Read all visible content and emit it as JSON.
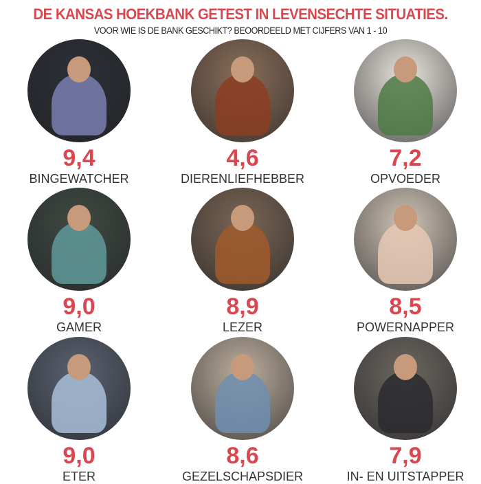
{
  "header": {
    "title": "DE KANSAS HOEKBANK GETEST IN LEVENSECHTE SITUATIES.",
    "subtitle": "VOOR WIE IS DE BANK GESCHIKT? BEOORDEELD MET CIJFERS VAN 1 - 10"
  },
  "colors": {
    "accent": "#d9474f",
    "text": "#333333"
  },
  "items": [
    {
      "score": "9,4",
      "label": "BINGEWATCHER",
      "bg": "#2c3036",
      "fg": "#7a7fb0"
    },
    {
      "score": "4,6",
      "label": "DIERENLIEFHEBBER",
      "bg": "#8a6e58",
      "fg": "#8b3d22"
    },
    {
      "score": "7,2",
      "label": "OPVOEDER",
      "bg": "#e9e4dc",
      "fg": "#4e7a45"
    },
    {
      "score": "9,0",
      "label": "GAMER",
      "bg": "#3f4a42",
      "fg": "#5f9a9a"
    },
    {
      "score": "8,9",
      "label": "LEZER",
      "bg": "#7a6654",
      "fg": "#a05a2c"
    },
    {
      "score": "8,5",
      "label": "POWERNAPPER",
      "bg": "#cfc4b6",
      "fg": "#e6c9b4"
    },
    {
      "score": "9,0",
      "label": "ETER",
      "bg": "#5a6270",
      "fg": "#a8bfd8"
    },
    {
      "score": "8,6",
      "label": "GEZELSCHAPSDIER",
      "bg": "#bcae9c",
      "fg": "#6f8fb0"
    },
    {
      "score": "7,9",
      "label": "IN- EN UITSTAPPER",
      "bg": "#6c6660",
      "fg": "#2a2a2e"
    }
  ]
}
